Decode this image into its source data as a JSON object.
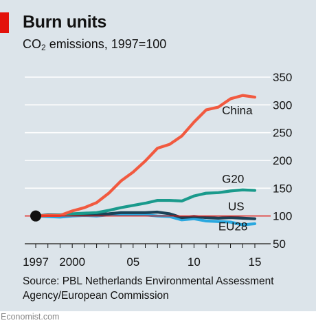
{
  "header": {
    "title": "Burn units",
    "subtitle_prefix": "CO",
    "subtitle_sub": "2",
    "subtitle_suffix": " emissions, 1997=100"
  },
  "footer": {
    "source": "Source: PBL Netherlands Environmental Assessment Agency/European Commission",
    "brand": "Economist.com"
  },
  "colors": {
    "china": "#f15a40",
    "g20": "#1a9a8c",
    "us": "#1b4257",
    "eu28": "#2aa8df",
    "baseline": "#e3120b",
    "background": "#dce4ea"
  },
  "chart_data": {
    "type": "line",
    "title": "Burn units",
    "subtitle": "CO2 emissions, 1997=100",
    "xlim": [
      1997,
      2015
    ],
    "ylim": [
      50,
      350
    ],
    "x_ticks": [
      {
        "value": 1997,
        "label": "1997"
      },
      {
        "value": 2000,
        "label": "2000"
      },
      {
        "value": 2005,
        "label": "05"
      },
      {
        "value": 2010,
        "label": "10"
      },
      {
        "value": 2015,
        "label": "15"
      }
    ],
    "y_ticks": [
      {
        "value": 50,
        "label": "50"
      },
      {
        "value": 100,
        "label": "100"
      },
      {
        "value": 150,
        "label": "150"
      },
      {
        "value": 200,
        "label": "200"
      },
      {
        "value": 250,
        "label": "250"
      },
      {
        "value": 300,
        "label": "300"
      },
      {
        "value": 350,
        "label": "350"
      }
    ],
    "baseline": 100,
    "grid": "horizontal",
    "x": [
      1997,
      1998,
      1999,
      2000,
      2001,
      2002,
      2003,
      2004,
      2005,
      2006,
      2007,
      2008,
      2009,
      2010,
      2011,
      2012,
      2013,
      2014,
      2015
    ],
    "series": [
      {
        "name": "China",
        "key": "china",
        "values": [
          100,
          101,
          101,
          109,
          115,
          124,
          141,
          163,
          179,
          199,
          222,
          229,
          244,
          269,
          291,
          296,
          311,
          317,
          314
        ]
      },
      {
        "name": "G20",
        "key": "g20",
        "values": [
          100,
          101,
          102,
          104,
          105,
          106,
          110,
          115,
          119,
          123,
          128,
          128,
          127,
          136,
          141,
          142,
          145,
          147,
          146
        ]
      },
      {
        "name": "US",
        "key": "us",
        "values": [
          100,
          102,
          102,
          103,
          102,
          103,
          104,
          106,
          106,
          106,
          107,
          104,
          97,
          99,
          97,
          96,
          97,
          96,
          95
        ]
      },
      {
        "name": "EU28",
        "key": "eu28",
        "values": [
          100,
          99,
          98,
          100,
          101,
          100,
          102,
          103,
          102,
          102,
          100,
          99,
          93,
          95,
          91,
          90,
          89,
          84,
          86
        ]
      }
    ],
    "series_labels": [
      {
        "key": "china",
        "text": "China",
        "x": 2012.3,
        "y": 283
      },
      {
        "key": "g20",
        "text": "G20",
        "x": 2012.3,
        "y": 160
      },
      {
        "key": "us",
        "text": "US",
        "x": 2012.8,
        "y": 110
      },
      {
        "key": "eu28",
        "text": "EU28",
        "x": 2012.0,
        "y": 74
      }
    ],
    "base_marker": {
      "x": 1997,
      "y": 100
    }
  }
}
